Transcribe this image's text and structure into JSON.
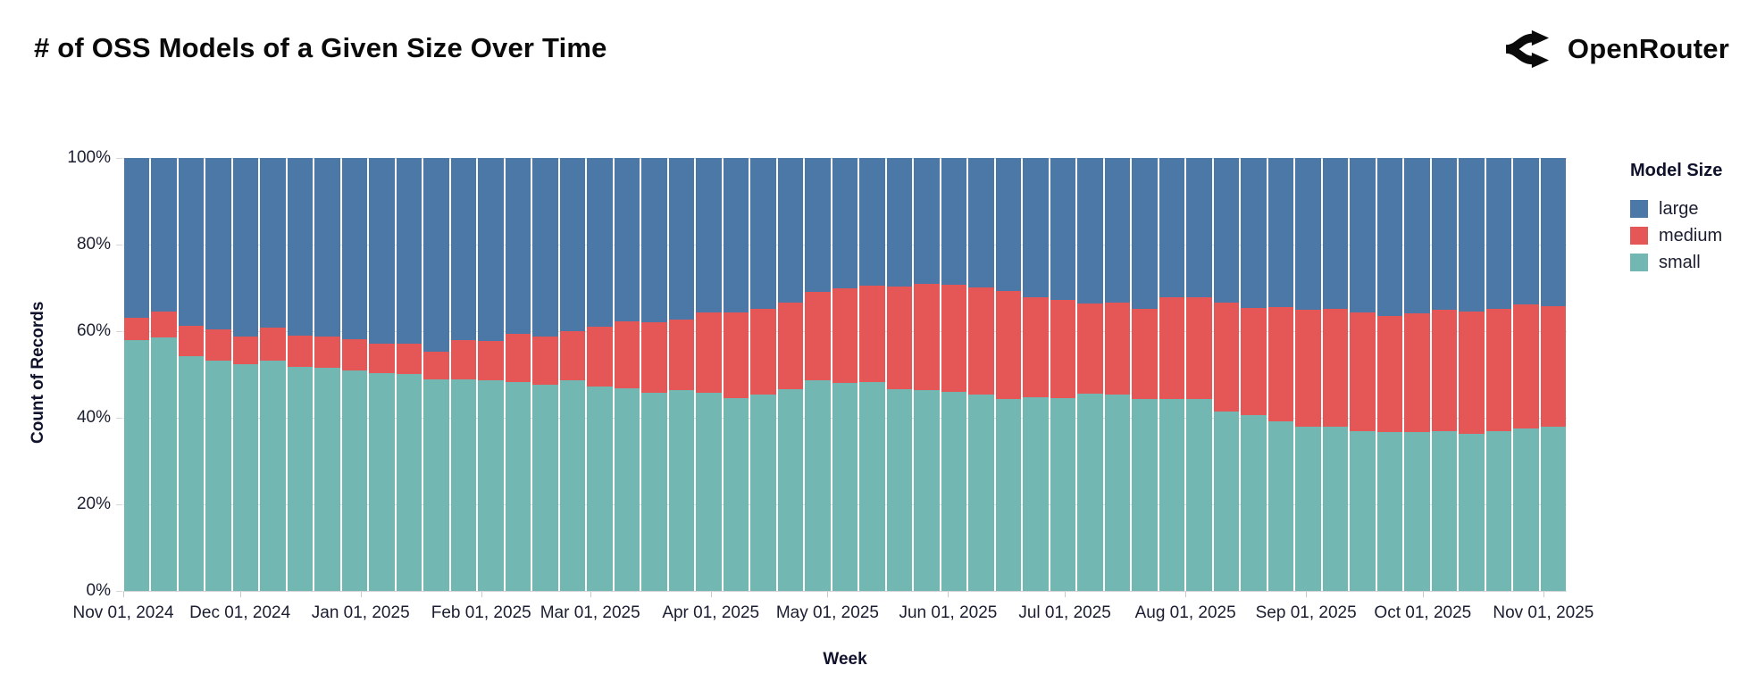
{
  "header": {
    "title": "# of OSS Models of a Given Size Over Time",
    "brand": "OpenRouter"
  },
  "chart_data": {
    "type": "bar",
    "variant": "stacked-normalized",
    "title": "# of OSS Models of a Given Size Over Time",
    "xlabel": "Week",
    "ylabel": "Count of Records",
    "ylim": [
      0,
      100
    ],
    "grid": true,
    "y_tick_labels": [
      "0%",
      "20%",
      "40%",
      "60%",
      "80%",
      "100%"
    ],
    "y_tick_values": [
      0,
      20,
      40,
      60,
      80,
      100
    ],
    "x_tick_labels": [
      "Nov 01, 2024",
      "Dec 01, 2024",
      "Jan 01, 2025",
      "Feb 01, 2025",
      "Mar 01, 2025",
      "Apr 01, 2025",
      "May 01, 2025",
      "Jun 01, 2025",
      "Jul 01, 2025",
      "Aug 01, 2025",
      "Sep 01, 2025",
      "Oct 01, 2025",
      "Nov 01, 2025"
    ],
    "x_tick_day_offsets": [
      0,
      30,
      61,
      92,
      120,
      151,
      181,
      212,
      242,
      273,
      304,
      334,
      365
    ],
    "total_days": 371,
    "legend": {
      "title": "Model Size",
      "position": "right",
      "entries": [
        {
          "label": "large",
          "color": "#4c78a8"
        },
        {
          "label": "medium",
          "color": "#e45756"
        },
        {
          "label": "small",
          "color": "#72b7b2"
        }
      ]
    },
    "categories": [
      "2024-11-01",
      "2024-11-08",
      "2024-11-15",
      "2024-11-22",
      "2024-11-29",
      "2024-12-06",
      "2024-12-13",
      "2024-12-20",
      "2024-12-27",
      "2025-01-03",
      "2025-01-10",
      "2025-01-17",
      "2025-01-24",
      "2025-01-31",
      "2025-02-07",
      "2025-02-14",
      "2025-02-21",
      "2025-02-28",
      "2025-03-07",
      "2025-03-14",
      "2025-03-21",
      "2025-03-28",
      "2025-04-04",
      "2025-04-11",
      "2025-04-18",
      "2025-04-25",
      "2025-05-02",
      "2025-05-09",
      "2025-05-16",
      "2025-05-23",
      "2025-05-30",
      "2025-06-06",
      "2025-06-13",
      "2025-06-20",
      "2025-06-27",
      "2025-07-04",
      "2025-07-11",
      "2025-07-18",
      "2025-07-25",
      "2025-08-01",
      "2025-08-08",
      "2025-08-15",
      "2025-08-22",
      "2025-08-29",
      "2025-09-05",
      "2025-09-12",
      "2025-09-19",
      "2025-09-26",
      "2025-10-03",
      "2025-10-10",
      "2025-10-17",
      "2025-10-24",
      "2025-10-31"
    ],
    "series": [
      {
        "name": "small",
        "color": "#72b7b2",
        "values": [
          58.0,
          58.5,
          54.3,
          53.3,
          52.4,
          53.1,
          51.7,
          51.5,
          51.0,
          50.4,
          50.2,
          48.9,
          48.8,
          48.6,
          48.2,
          47.7,
          48.6,
          47.2,
          46.9,
          45.7,
          46.3,
          45.7,
          44.5,
          45.3,
          46.5,
          48.6,
          48.1,
          48.2,
          46.5,
          46.4,
          46.0,
          45.3,
          44.3,
          44.7,
          44.5,
          45.5,
          45.3,
          44.3,
          44.4,
          44.3,
          41.4,
          40.7,
          39.2,
          37.9,
          37.9,
          36.9,
          36.8,
          36.8,
          36.9,
          36.3,
          36.9,
          37.5,
          37.9
        ]
      },
      {
        "name": "medium",
        "color": "#e45756",
        "values": [
          5.0,
          6.1,
          7.0,
          7.2,
          6.4,
          7.8,
          7.2,
          7.3,
          7.2,
          6.8,
          7.0,
          6.3,
          9.2,
          9.2,
          11.1,
          11.0,
          11.5,
          13.9,
          15.4,
          16.4,
          16.4,
          18.7,
          19.9,
          19.9,
          20.0,
          20.4,
          21.9,
          22.4,
          23.9,
          24.5,
          24.8,
          24.9,
          25.0,
          23.2,
          22.8,
          20.9,
          21.3,
          20.9,
          23.4,
          23.5,
          25.2,
          24.7,
          26.4,
          27.1,
          27.3,
          27.4,
          26.7,
          27.4,
          28.0,
          28.2,
          28.3,
          28.6,
          27.8
        ]
      },
      {
        "name": "large",
        "color": "#4c78a8",
        "values": [
          37.0,
          35.4,
          38.7,
          39.5,
          41.2,
          39.1,
          41.1,
          41.2,
          41.8,
          42.8,
          42.8,
          44.8,
          42.0,
          42.2,
          40.7,
          41.3,
          39.9,
          38.9,
          37.7,
          37.9,
          37.3,
          35.6,
          35.6,
          34.8,
          33.5,
          31.0,
          30.0,
          29.4,
          29.6,
          29.1,
          29.2,
          29.8,
          30.7,
          32.1,
          32.7,
          33.6,
          33.4,
          34.8,
          32.2,
          32.2,
          33.4,
          34.6,
          34.4,
          35.0,
          34.8,
          35.7,
          36.5,
          35.8,
          35.1,
          35.5,
          34.8,
          33.9,
          34.3
        ]
      }
    ]
  }
}
